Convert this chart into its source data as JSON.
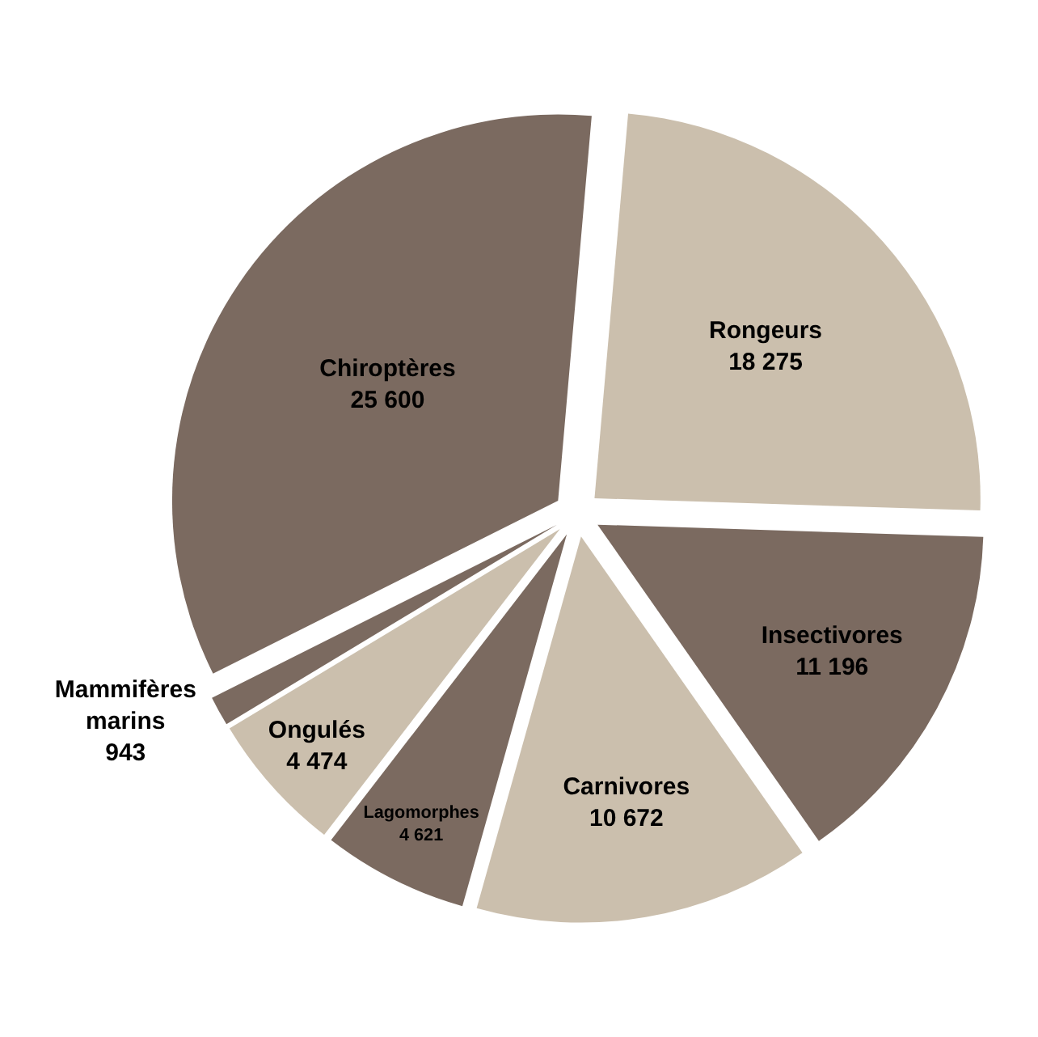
{
  "chart_data": {
    "type": "pie",
    "categories": [
      "Rongeurs",
      "Insectivores",
      "Carnivores",
      "Lagomorphes",
      "Ongulés",
      "Mammifères marins",
      "Chiroptères"
    ],
    "values": [
      18275,
      11196,
      10672,
      4621,
      4474,
      943,
      25600
    ],
    "value_labels": [
      "18 275",
      "11 196",
      "10 672",
      "4 621",
      "4 474",
      "943",
      "25 600"
    ],
    "colors": [
      "#cbbfad",
      "#7b6a60",
      "#cbbfad",
      "#7b6a60",
      "#cbbfad",
      "#7b6a60",
      "#7b6a60"
    ],
    "legend": false
  }
}
